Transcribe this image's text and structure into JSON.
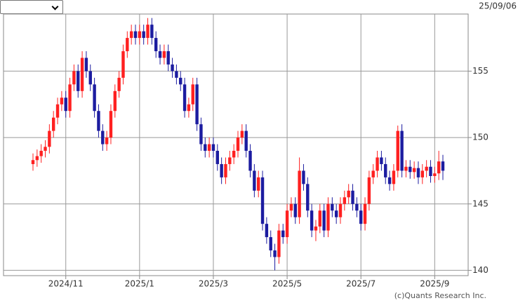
{
  "chart_data": {
    "type": "candlestick",
    "date": "25/09/06",
    "source": "(c)Quants Research Inc.",
    "up_color": "#ff2020",
    "down_color": "#1c1ca0",
    "ylim": [
      139.6,
      159.3
    ],
    "yticks": [
      140,
      145,
      150,
      155
    ],
    "grid": true,
    "categories": [
      null,
      null,
      null,
      null,
      null,
      null,
      null,
      null,
      "2024/11",
      null,
      null,
      null,
      null,
      null,
      null,
      null,
      null,
      null,
      null,
      null,
      null,
      null,
      null,
      null,
      null,
      null,
      "2025/1",
      null,
      null,
      null,
      null,
      null,
      null,
      null,
      null,
      null,
      null,
      null,
      null,
      null,
      null,
      null,
      null,
      null,
      "2025/3",
      null,
      null,
      null,
      null,
      null,
      null,
      null,
      null,
      null,
      null,
      null,
      null,
      null,
      null,
      null,
      null,
      null,
      "2025/5",
      null,
      null,
      null,
      null,
      null,
      null,
      null,
      null,
      null,
      null,
      null,
      null,
      null,
      null,
      null,
      null,
      null,
      "2025/7",
      null,
      null,
      null,
      null,
      null,
      null,
      null,
      null,
      null,
      null,
      null,
      null,
      null,
      null,
      null,
      null,
      null,
      "2025/9",
      null,
      null
    ],
    "open": [
      148.0,
      148.3,
      148.6,
      149,
      149.3,
      150.5,
      151.5,
      152.5,
      153,
      152,
      154,
      155,
      153.5,
      156,
      155,
      154,
      152,
      150.5,
      149.5,
      150,
      152,
      153.5,
      154.5,
      156.5,
      157.5,
      158,
      157.5,
      158,
      157.5,
      158.5,
      157.5,
      156.5,
      156,
      156.5,
      155.5,
      155,
      154.5,
      154,
      152,
      152.5,
      154,
      151,
      149.5,
      149,
      149.5,
      149,
      148,
      147,
      148,
      148.5,
      149,
      150,
      150.5,
      149,
      147.5,
      146,
      147,
      143.5,
      142.5,
      141.5,
      141,
      143,
      142.5,
      144.5,
      145,
      144,
      147.5,
      146.5,
      144.5,
      143,
      143.3,
      144.5,
      143,
      145,
      144.5,
      144,
      145,
      145.5,
      146,
      145,
      144.5,
      143.5,
      145,
      147,
      147.5,
      148.5,
      148,
      147,
      146.5,
      147.5,
      150.5,
      147.5,
      147.8,
      147.4,
      147.7,
      147,
      147.5,
      147.8,
      147.1,
      147.3,
      148.2
    ],
    "high": [
      148.8,
      149.1,
      149.5,
      149.8,
      151,
      152,
      153,
      153.5,
      153.5,
      154.5,
      155.5,
      155.5,
      156.5,
      156.5,
      155.5,
      154.5,
      152.5,
      151,
      150.5,
      152.5,
      154,
      155,
      157,
      158,
      158.5,
      158.5,
      158.5,
      158.5,
      159,
      159,
      158,
      157,
      157,
      157,
      156,
      155.5,
      155,
      154.5,
      153,
      154.5,
      154.5,
      151.5,
      150,
      150,
      150,
      149.5,
      148.5,
      148.5,
      149,
      149.5,
      150.5,
      151,
      151,
      149.5,
      148,
      147.5,
      147.5,
      144,
      143,
      142,
      143.5,
      143.5,
      145,
      145.5,
      145.5,
      148.5,
      148,
      147,
      145,
      143.8,
      145,
      145,
      145.5,
      145.5,
      145,
      145.5,
      146,
      146.5,
      146.5,
      145.5,
      145,
      145.5,
      147.5,
      148,
      149,
      149,
      148.5,
      147.5,
      148,
      150.9,
      151,
      148.3,
      148.3,
      148.2,
      148.2,
      148,
      148.3,
      148.3,
      147.8,
      149,
      148.7
    ],
    "low": [
      147.5,
      147.8,
      148.1,
      148.5,
      148.8,
      150,
      151,
      152,
      151.5,
      151.5,
      153.5,
      153,
      153,
      154.5,
      153.5,
      151.5,
      150,
      149,
      149,
      149.5,
      151.5,
      153,
      154,
      156,
      157,
      157,
      157,
      157,
      157,
      157,
      156,
      155.5,
      155.5,
      155,
      154.5,
      154,
      153.5,
      151.5,
      151.5,
      152,
      150.5,
      149,
      148.5,
      148.5,
      148.5,
      147.5,
      146.5,
      146.5,
      147.5,
      148,
      148.5,
      149.5,
      148.5,
      147,
      145.5,
      145.5,
      143,
      142,
      141,
      140,
      140.5,
      142,
      142,
      144,
      143.5,
      143.5,
      146,
      144,
      142.5,
      142.2,
      142.8,
      142.5,
      142.5,
      144,
      143.5,
      143.5,
      144.5,
      145,
      144.5,
      144,
      143,
      143,
      144.5,
      146.5,
      147,
      147.5,
      146.5,
      146,
      146,
      147,
      147,
      147,
      146.9,
      146.9,
      146.5,
      146.5,
      147,
      146.6,
      146.6,
      146.8,
      146.8
    ],
    "close": [
      148.3,
      148.6,
      149,
      149.3,
      150.5,
      151.5,
      152.5,
      153,
      152,
      154,
      155,
      153.5,
      156,
      155,
      154,
      152,
      150.5,
      149.5,
      150,
      152,
      153.5,
      154.5,
      156.5,
      157.5,
      158,
      157.5,
      158,
      157.5,
      158.5,
      157.5,
      156.5,
      156,
      156.5,
      155.5,
      155,
      154.5,
      154,
      152,
      152.5,
      154,
      151,
      149.5,
      149,
      149.5,
      149,
      148,
      147,
      148,
      148.5,
      149,
      150,
      150.5,
      149,
      147.5,
      146,
      147,
      143.5,
      142.5,
      141.5,
      141,
      143,
      142.5,
      144.5,
      145,
      144,
      147.5,
      146.5,
      144.5,
      143,
      143.3,
      144.5,
      143,
      145,
      144.5,
      144,
      145,
      145.5,
      146,
      145,
      144.5,
      143.5,
      145,
      147,
      147.5,
      148.5,
      148,
      147,
      146.5,
      147.5,
      150.5,
      147.5,
      147.8,
      147.4,
      147.7,
      147,
      147.5,
      147.8,
      147.1,
      147.3,
      148.2,
      147.5
    ]
  }
}
